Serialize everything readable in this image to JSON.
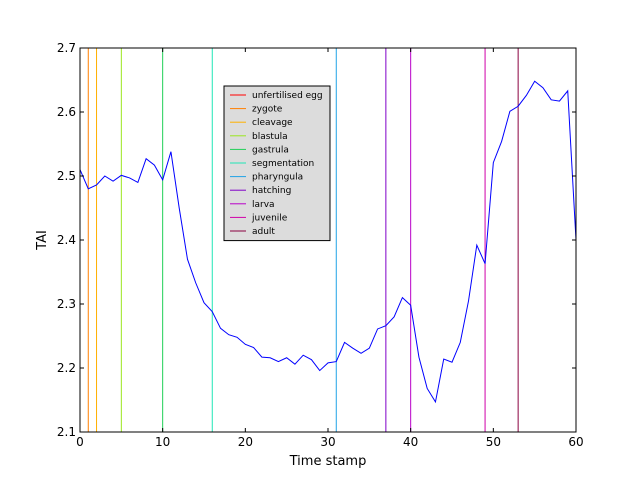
{
  "chart_data": {
    "type": "line",
    "title": "",
    "xlabel": "Time stamp",
    "ylabel": "TAI",
    "xlim": [
      0,
      60
    ],
    "ylim": [
      2.1,
      2.7
    ],
    "xticks": [
      0,
      10,
      20,
      30,
      40,
      50,
      60
    ],
    "yticks": [
      2.1,
      2.2,
      2.3,
      2.4,
      2.5,
      2.6,
      2.7
    ],
    "grid": false,
    "legend_position": "upper-center",
    "series": [
      {
        "color": "#0000ff",
        "x": [
          0,
          1,
          2,
          3,
          4,
          5,
          6,
          7,
          8,
          9,
          10,
          11,
          12,
          13,
          14,
          15,
          16,
          17,
          18,
          19,
          20,
          21,
          22,
          23,
          24,
          25,
          26,
          27,
          28,
          29,
          30,
          31,
          32,
          33,
          34,
          35,
          36,
          37,
          38,
          39,
          40,
          41,
          42,
          43,
          44,
          45,
          46,
          47,
          48,
          49,
          50,
          51,
          52,
          53,
          54,
          55,
          56,
          57,
          58,
          59,
          60
        ],
        "values": [
          2.51,
          2.48,
          2.486,
          2.5,
          2.492,
          2.501,
          2.497,
          2.49,
          2.527,
          2.517,
          2.494,
          2.538,
          2.45,
          2.37,
          2.333,
          2.302,
          2.288,
          2.262,
          2.252,
          2.248,
          2.237,
          2.232,
          2.217,
          2.216,
          2.21,
          2.216,
          2.206,
          2.22,
          2.213,
          2.196,
          2.208,
          2.21,
          2.24,
          2.231,
          2.223,
          2.231,
          2.261,
          2.266,
          2.28,
          2.31,
          2.298,
          2.217,
          2.168,
          2.147,
          2.214,
          2.209,
          2.24,
          2.305,
          2.392,
          2.363,
          2.521,
          2.554,
          2.601,
          2.609,
          2.626,
          2.648,
          2.638,
          2.619,
          2.617,
          2.633,
          2.4
        ]
      }
    ],
    "markers": [
      {
        "label": "unfertilised egg",
        "x": 0,
        "color": "#ff0000"
      },
      {
        "label": "zygote",
        "x": 1,
        "color": "#ff7f00"
      },
      {
        "label": "cleavage",
        "x": 2,
        "color": "#ffb000"
      },
      {
        "label": "blastula",
        "x": 5,
        "color": "#9be61f"
      },
      {
        "label": "gastrula",
        "x": 10,
        "color": "#1fcf56"
      },
      {
        "label": "segmentation",
        "x": 16,
        "color": "#1fe6b6"
      },
      {
        "label": "pharyngula",
        "x": 31,
        "color": "#1fa3e6"
      },
      {
        "label": "hatching",
        "x": 37,
        "color": "#8000c8"
      },
      {
        "label": "larva",
        "x": 40,
        "color": "#b800c8"
      },
      {
        "label": "juvenile",
        "x": 49,
        "color": "#d000a8"
      },
      {
        "label": "adult",
        "x": 53,
        "color": "#8a0040"
      }
    ]
  },
  "colors": {
    "legend_background": "#dcdcdc",
    "axis": "#000000"
  }
}
